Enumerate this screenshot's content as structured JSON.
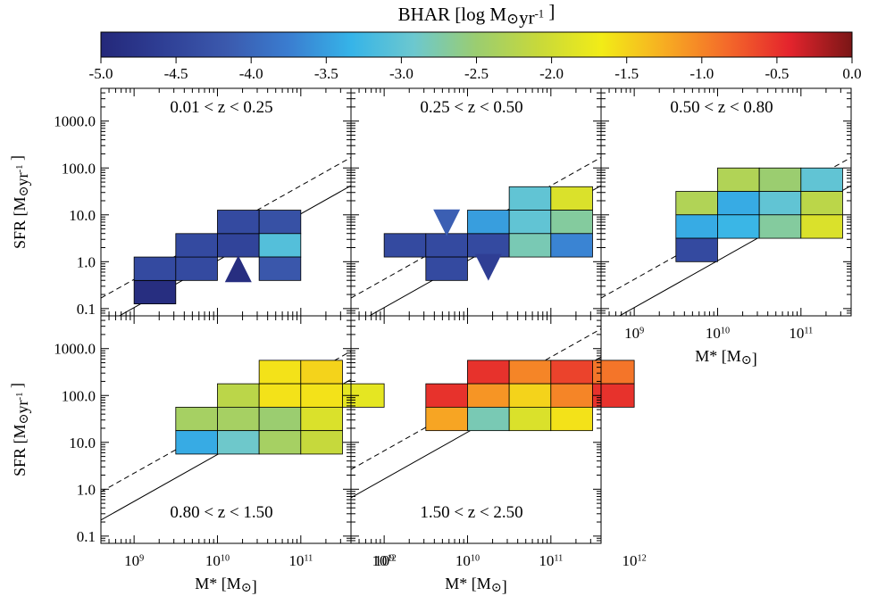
{
  "chart_data": {
    "type": "heatmap",
    "colorbar": {
      "title": "BHAR [log M⊙yr⁻¹ ]",
      "range": [
        -5.0,
        0.0
      ],
      "ticks": [
        "-5.0",
        "-4.5",
        "-4.0",
        "-3.5",
        "-3.0",
        "-2.5",
        "-2.0",
        "-1.5",
        "-1.0",
        "-0.5",
        "0.0"
      ],
      "colormap": [
        "#24287a",
        "#2f3f95",
        "#3b59ad",
        "#3a7dd0",
        "#36b4e8",
        "#6cc8cf",
        "#9bcd70",
        "#c8d93a",
        "#f2ec17",
        "#f7ad22",
        "#f46a2a",
        "#e4242d",
        "#7a1616"
      ]
    },
    "xlabel": "M* [M⊙]",
    "ylabel": "SFR [M⊙yr⁻¹ ]",
    "xscale": "log",
    "yscale": "log",
    "xlim": [
      400000000,
      400000000000
    ],
    "ylim": [
      0.07,
      5000
    ],
    "x_ticks": [
      {
        "v": 1000000000,
        "label": "10⁹"
      },
      {
        "v": 10000000000,
        "label": "10¹⁰"
      },
      {
        "v": 100000000000,
        "label": "10¹¹"
      },
      {
        "v": 1000000000000,
        "label": "10¹²"
      }
    ],
    "y_ticks": [
      {
        "v": 0.1,
        "label": "0.1"
      },
      {
        "v": 1,
        "label": "1.0"
      },
      {
        "v": 10,
        "label": "10.0"
      },
      {
        "v": 100,
        "label": "100.0"
      },
      {
        "v": 1000,
        "label": "1000.0"
      }
    ],
    "panels": [
      {
        "label": "0.01 < z < 0.25",
        "main_sequence_norm": 1.05e-10,
        "cells": [
          {
            "x0": 9.0,
            "y0": -0.9,
            "bhar": -4.9
          },
          {
            "x0": 9.0,
            "y0": -0.4,
            "bhar": -4.4
          },
          {
            "x0": 9.5,
            "y0": -0.4,
            "bhar": -4.4
          },
          {
            "x0": 9.5,
            "y0": 0.1,
            "bhar": -4.4
          },
          {
            "x0": 10.0,
            "y0": 0.1,
            "bhar": -4.5
          },
          {
            "x0": 10.0,
            "y0": 0.6,
            "bhar": -4.4
          },
          {
            "x0": 10.5,
            "y0": 0.6,
            "bhar": -4.3
          },
          {
            "x0": 10.5,
            "y0": 0.1,
            "bhar": -3.1
          },
          {
            "x0": 10.5,
            "y0": -0.4,
            "bhar": -4.2
          }
        ],
        "limits": [
          {
            "x": 10.25,
            "y": -0.15,
            "dir": "up",
            "bhar": -4.9
          }
        ]
      },
      {
        "label": "0.25 < z < 0.50",
        "main_sequence_norm": 1.05e-10,
        "cells": [
          {
            "x0": 9.0,
            "y0": 0.1,
            "bhar": -4.4
          },
          {
            "x0": 9.5,
            "y0": 0.1,
            "bhar": -4.4
          },
          {
            "x0": 9.5,
            "y0": -0.4,
            "bhar": -4.4
          },
          {
            "x0": 10.0,
            "y0": 0.1,
            "bhar": -4.4
          },
          {
            "x0": 10.0,
            "y0": 0.6,
            "bhar": -3.5
          },
          {
            "x0": 10.5,
            "y0": 0.6,
            "bhar": -3.0
          },
          {
            "x0": 10.5,
            "y0": 1.1,
            "bhar": -3.0
          },
          {
            "x0": 10.5,
            "y0": 0.1,
            "bhar": -2.8
          },
          {
            "x0": 11.0,
            "y0": 1.1,
            "bhar": -1.9
          },
          {
            "x0": 11.0,
            "y0": 0.6,
            "bhar": -2.7
          },
          {
            "x0": 11.0,
            "y0": 0.1,
            "bhar": -3.7
          }
        ],
        "limits": [
          {
            "x": 9.75,
            "y": 0.83,
            "dir": "down",
            "bhar": -4.1
          },
          {
            "x": 10.25,
            "y": -0.12,
            "dir": "down",
            "bhar": -4.6
          }
        ]
      },
      {
        "label": "0.50 < z < 0.80",
        "main_sequence_norm": 1.05e-10,
        "cells": [
          {
            "x0": 9.5,
            "y0": 1.0,
            "bhar": -2.3
          },
          {
            "x0": 9.5,
            "y0": 0.5,
            "bhar": -3.4
          },
          {
            "x0": 9.5,
            "y0": 0.0,
            "bhar": -4.4
          },
          {
            "x0": 10.0,
            "y0": 1.5,
            "bhar": -2.3
          },
          {
            "x0": 10.0,
            "y0": 1.0,
            "bhar": -3.4
          },
          {
            "x0": 10.0,
            "y0": 0.5,
            "bhar": -3.3
          },
          {
            "x0": 10.5,
            "y0": 1.5,
            "bhar": -2.5
          },
          {
            "x0": 10.5,
            "y0": 1.0,
            "bhar": -3.0
          },
          {
            "x0": 10.5,
            "y0": 0.5,
            "bhar": -2.7
          },
          {
            "x0": 11.0,
            "y0": 1.5,
            "bhar": -3.0
          },
          {
            "x0": 11.0,
            "y0": 1.0,
            "bhar": -2.2
          },
          {
            "x0": 11.0,
            "y0": 0.5,
            "bhar": -1.9
          }
        ],
        "limits": []
      },
      {
        "label": "0.80 < z < 1.50",
        "main_sequence_norm": 5.5e-10,
        "cells": [
          {
            "x0": 9.5,
            "y0": 1.25,
            "bhar": -2.4
          },
          {
            "x0": 9.5,
            "y0": 0.75,
            "bhar": -3.4
          },
          {
            "x0": 10.0,
            "y0": 1.75,
            "bhar": -2.2
          },
          {
            "x0": 10.0,
            "y0": 1.25,
            "bhar": -2.4
          },
          {
            "x0": 10.0,
            "y0": 0.75,
            "bhar": -2.9
          },
          {
            "x0": 10.5,
            "y0": 2.25,
            "bhar": -1.6
          },
          {
            "x0": 10.5,
            "y0": 1.75,
            "bhar": -1.6
          },
          {
            "x0": 10.5,
            "y0": 1.25,
            "bhar": -2.5
          },
          {
            "x0": 10.5,
            "y0": 0.75,
            "bhar": -2.4
          },
          {
            "x0": 11.0,
            "y0": 2.25,
            "bhar": -1.5
          },
          {
            "x0": 11.0,
            "y0": 1.75,
            "bhar": -1.6
          },
          {
            "x0": 11.0,
            "y0": 1.25,
            "bhar": -1.9
          },
          {
            "x0": 11.0,
            "y0": 0.75,
            "bhar": -2.1
          },
          {
            "x0": 11.5,
            "y0": 1.75,
            "bhar": -1.8
          }
        ],
        "limits": []
      },
      {
        "label": "1.50 < z < 2.50",
        "main_sequence_norm": 1.65e-09,
        "cells": [
          {
            "x0": 9.5,
            "y0": 1.75,
            "bhar": -0.5
          },
          {
            "x0": 9.5,
            "y0": 1.25,
            "bhar": -1.2
          },
          {
            "x0": 10.0,
            "y0": 2.25,
            "bhar": -0.5
          },
          {
            "x0": 10.0,
            "y0": 1.75,
            "bhar": -1.1
          },
          {
            "x0": 10.0,
            "y0": 1.25,
            "bhar": -2.8
          },
          {
            "x0": 10.5,
            "y0": 2.25,
            "bhar": -1.0
          },
          {
            "x0": 10.5,
            "y0": 1.75,
            "bhar": -1.5
          },
          {
            "x0": 10.5,
            "y0": 1.25,
            "bhar": -1.9
          },
          {
            "x0": 11.0,
            "y0": 2.25,
            "bhar": -0.6
          },
          {
            "x0": 11.0,
            "y0": 1.75,
            "bhar": -1.0
          },
          {
            "x0": 11.0,
            "y0": 1.25,
            "bhar": -1.6
          },
          {
            "x0": 11.5,
            "y0": 2.25,
            "bhar": -0.9
          },
          {
            "x0": 11.5,
            "y0": 1.75,
            "bhar": -0.5
          }
        ],
        "limits": []
      }
    ]
  }
}
